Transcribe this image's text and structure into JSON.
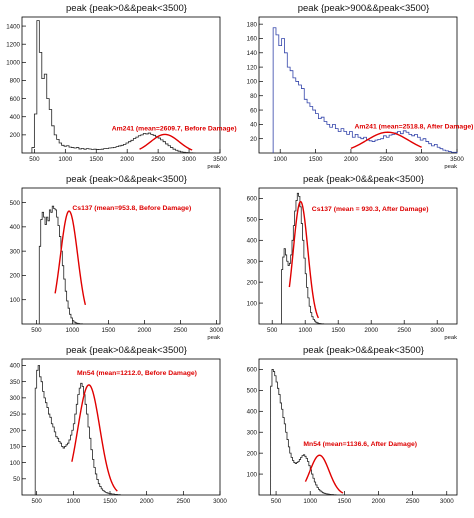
{
  "chart_data": [
    {
      "type": "histogram",
      "title": "peak {peak>0&&peak<3500}",
      "xlabel": "peak",
      "xlim": [
        300,
        3500
      ],
      "ylim": [
        0,
        1500
      ],
      "xticks": [
        500,
        1000,
        1500,
        2000,
        2500,
        3000,
        3500
      ],
      "yticks": [
        200,
        400,
        600,
        800,
        1000,
        1200,
        1400
      ],
      "hist_color": "#222222",
      "fit_color": "#e00000",
      "label_color": "#dd0000",
      "annotation": "Am241 (mean=2609.7, Before Damage)",
      "annotation_at": [
        1750,
        250
      ],
      "bins": {
        "x0": 460,
        "width": 40,
        "values": [
          60,
          430,
          1460,
          1110,
          820,
          870,
          600,
          480,
          300,
          200,
          150,
          110,
          85,
          75,
          80,
          65,
          60,
          55,
          60,
          45,
          50,
          42,
          48,
          44,
          40,
          42,
          38,
          40,
          42,
          48,
          50,
          55,
          58,
          62,
          70,
          78,
          85,
          95,
          110,
          125,
          140,
          160,
          175,
          190,
          200,
          215,
          210,
          220,
          205,
          195,
          180,
          165,
          145,
          125,
          100,
          80,
          60,
          42,
          30,
          20,
          12,
          8,
          5,
          3,
          2,
          1
        ]
      },
      "fit": {
        "mean": 2609.7,
        "sigma": 230,
        "amplitude": 205,
        "range": [
          2200,
          3050
        ]
      }
    },
    {
      "type": "histogram",
      "title": "peak {peak>900&&peak<3500}",
      "xlabel": "peak",
      "xlim": [
        700,
        3500
      ],
      "ylim": [
        0,
        190
      ],
      "xticks": [
        1000,
        1500,
        2000,
        2500,
        3000,
        3500
      ],
      "yticks": [
        20,
        40,
        60,
        80,
        100,
        120,
        140,
        160,
        180
      ],
      "hist_color": "#3344aa",
      "fit_color": "#e00000",
      "label_color": "#dd0000",
      "annotation": "Am241 (mean=2518.8, After Damage)",
      "annotation_at": [
        2050,
        34
      ],
      "bins": {
        "x0": 900,
        "width": 40,
        "values": [
          175,
          165,
          150,
          160,
          140,
          120,
          115,
          105,
          100,
          95,
          90,
          75,
          70,
          65,
          60,
          55,
          48,
          50,
          44,
          40,
          36,
          40,
          34,
          30,
          34,
          30,
          26,
          30,
          22,
          26,
          22,
          20,
          22,
          18,
          17,
          16,
          18,
          19,
          20,
          24,
          22,
          25,
          26,
          28,
          30,
          27,
          31,
          29,
          26,
          24,
          26,
          22,
          18,
          20,
          16,
          13,
          10,
          12,
          8,
          6,
          4,
          3,
          2,
          1,
          1
        ]
      },
      "fit": {
        "mean": 2518.8,
        "sigma": 300,
        "amplitude": 29,
        "range": [
          2000,
          3000
        ]
      }
    },
    {
      "type": "histogram",
      "title": "peak {peak>0&&peak<3500}",
      "xlabel": "peak",
      "xlim": [
        300,
        3050
      ],
      "ylim": [
        0,
        560
      ],
      "xticks": [
        500,
        1000,
        1500,
        2000,
        2500,
        3000
      ],
      "yticks": [
        100,
        200,
        300,
        400,
        500
      ],
      "hist_color": "#222222",
      "fit_color": "#e00000",
      "label_color": "#dd0000",
      "annotation": "Cs137 (mean=953.8, Before Damage)",
      "annotation_at": [
        1000,
        470
      ],
      "bins": {
        "x0": 540,
        "width": 20,
        "values": [
          320,
          430,
          460,
          440,
          410,
          440,
          425,
          470,
          460,
          485,
          475,
          470,
          440,
          405,
          360,
          300,
          240,
          185,
          135,
          95,
          65,
          40,
          25,
          14,
          8,
          5,
          3,
          2,
          1,
          1
        ]
      },
      "fit": {
        "mean": 953.8,
        "sigma": 120,
        "amplitude": 465,
        "range": [
          760,
          1180
        ]
      }
    },
    {
      "type": "histogram",
      "title": "peak {peak>0&&peak<3500}",
      "xlabel": "peak",
      "xlim": [
        300,
        3300
      ],
      "ylim": [
        0,
        650
      ],
      "xticks": [
        500,
        1000,
        1500,
        2000,
        2500,
        3000
      ],
      "yticks": [
        100,
        200,
        300,
        400,
        500,
        600
      ],
      "hist_color": "#222222",
      "fit_color": "#e00000",
      "label_color": "#dd0000",
      "annotation": "Cs137 (mean = 930.3, After Damage)",
      "annotation_at": [
        1100,
        540
      ],
      "bins": {
        "x0": 640,
        "width": 20,
        "values": [
          260,
          320,
          360,
          330,
          300,
          280,
          290,
          330,
          400,
          470,
          540,
          590,
          625,
          610,
          560,
          480,
          400,
          315,
          240,
          175,
          125,
          85,
          55,
          35,
          22,
          14,
          8,
          5,
          3,
          2,
          1,
          1
        ]
      },
      "fit": {
        "mean": 930.3,
        "sigma": 110,
        "amplitude": 585,
        "range": [
          760,
          1200
        ]
      }
    },
    {
      "type": "histogram",
      "title": "peak {peak>0&&peak<3500}",
      "xlabel": "",
      "xlim": [
        300,
        3000
      ],
      "ylim": [
        0,
        420
      ],
      "xticks": [
        500,
        1000,
        1500,
        2000,
        2500,
        3000
      ],
      "yticks": [
        50,
        100,
        150,
        200,
        250,
        300,
        350,
        400
      ],
      "hist_color": "#222222",
      "fit_color": "#e00000",
      "label_color": "#dd0000",
      "annotation": "Mn54 (mean=1212.0, Before Damage)",
      "annotation_at": [
        1050,
        370
      ],
      "bins": {
        "x0": 480,
        "width": 20,
        "values": [
          330,
          385,
          400,
          365,
          350,
          320,
          300,
          285,
          270,
          250,
          240,
          220,
          210,
          195,
          180,
          175,
          165,
          160,
          150,
          145,
          150,
          155,
          160,
          170,
          185,
          200,
          220,
          250,
          280,
          310,
          330,
          345,
          335,
          310,
          280,
          250,
          210,
          175,
          140,
          110,
          85,
          65,
          48,
          35,
          26,
          19,
          14,
          10,
          8,
          6,
          5,
          4,
          3,
          3,
          2,
          2,
          1,
          1
        ]
      },
      "fit": {
        "mean": 1212.0,
        "sigma": 150,
        "amplitude": 340,
        "range": [
          980,
          1600
        ]
      }
    },
    {
      "type": "histogram",
      "title": "peak {peak>0&&peak<3500}",
      "xlabel": "",
      "xlim": [
        250,
        3150
      ],
      "ylim": [
        0,
        650
      ],
      "xticks": [
        500,
        1000,
        1500,
        2000,
        2500,
        3000
      ],
      "yticks": [
        100,
        200,
        300,
        400,
        500,
        600
      ],
      "hist_color": "#222222",
      "fit_color": "#e00000",
      "label_color": "#dd0000",
      "annotation": "Mn54 (mean=1136.6, After Damage)",
      "annotation_at": [
        900,
        235
      ],
      "bins": {
        "x0": 420,
        "width": 20,
        "values": [
          520,
          600,
          590,
          570,
          540,
          510,
          480,
          440,
          410,
          370,
          340,
          300,
          265,
          230,
          200,
          180,
          165,
          155,
          150,
          155,
          160,
          170,
          180,
          188,
          192,
          185,
          175,
          160,
          140,
          120,
          100,
          80,
          62,
          48,
          36,
          27,
          20,
          15,
          11,
          8,
          6,
          5,
          4,
          3,
          2,
          2,
          1,
          1
        ]
      },
      "fit": {
        "mean": 1136.6,
        "sigma": 140,
        "amplitude": 190,
        "range": [
          930,
          1480
        ]
      }
    }
  ]
}
